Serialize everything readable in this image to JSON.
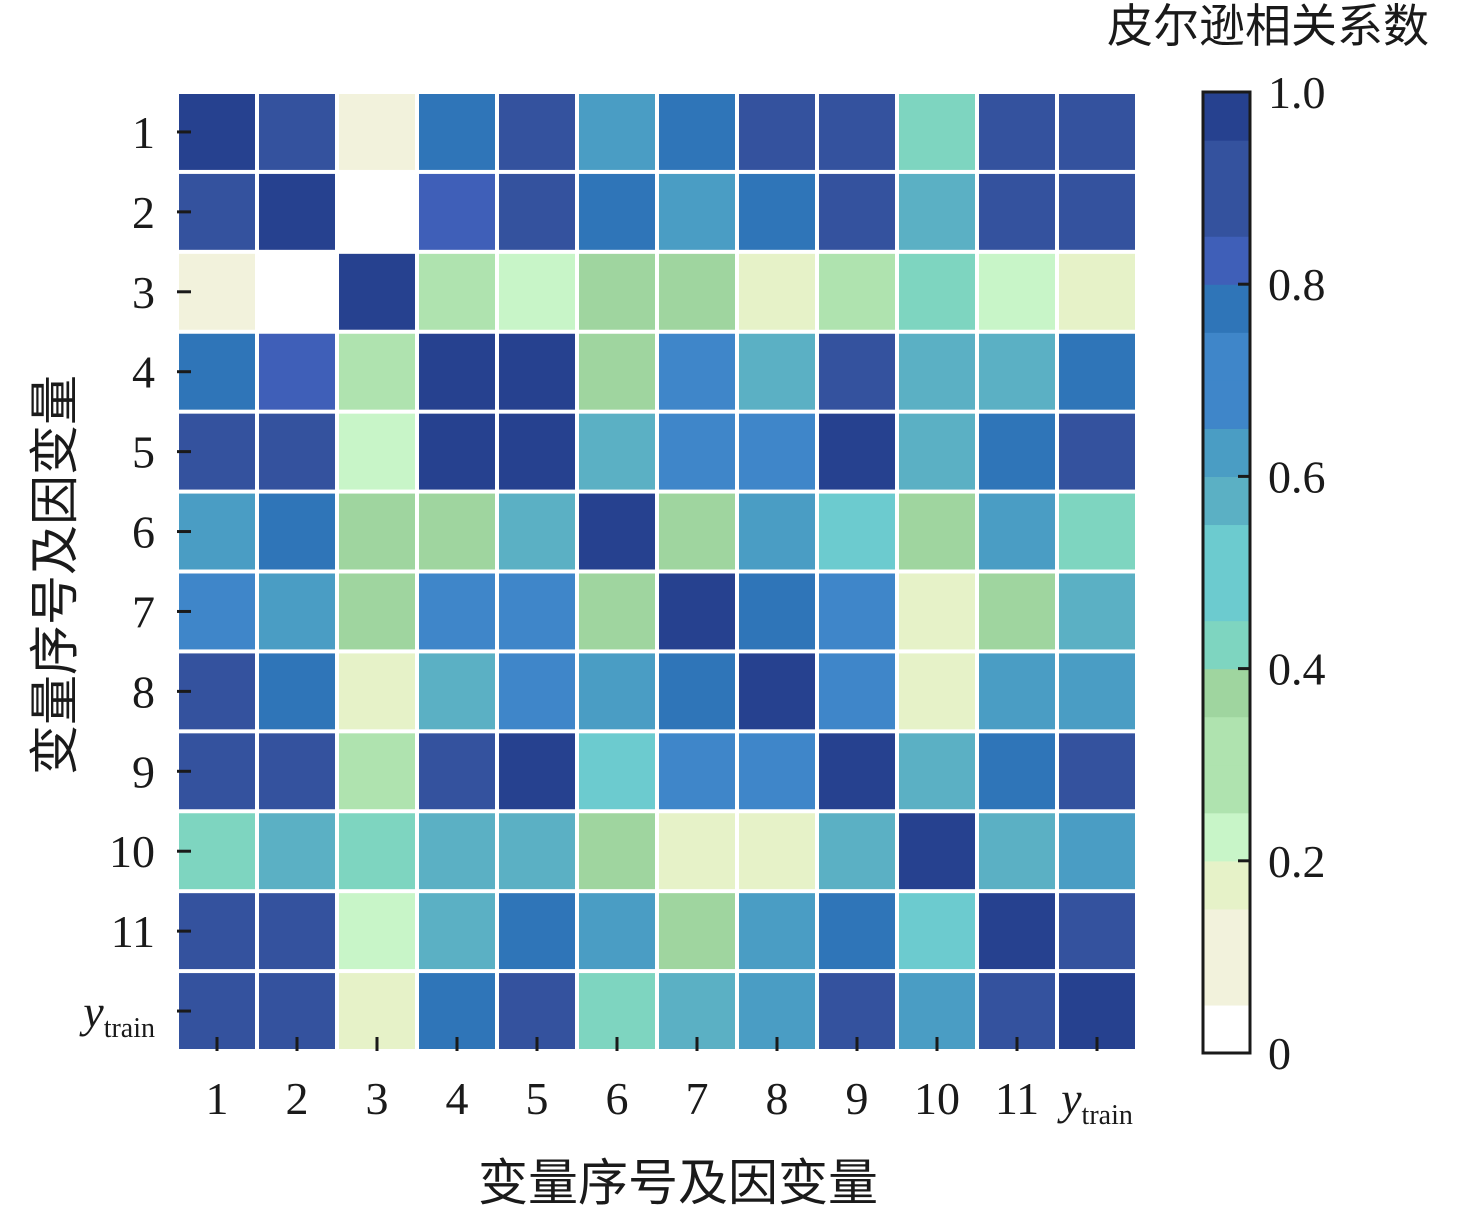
{
  "chart_data": {
    "type": "heatmap",
    "title": "",
    "xlabel": "变量序号及因变量",
    "ylabel": "变量序号及因变量",
    "x_categories": [
      "1",
      "2",
      "3",
      "4",
      "5",
      "6",
      "7",
      "8",
      "9",
      "10",
      "11",
      "y_train"
    ],
    "y_categories": [
      "1",
      "2",
      "3",
      "4",
      "5",
      "6",
      "7",
      "8",
      "9",
      "10",
      "11",
      "y_train"
    ],
    "values": [
      [
        1.0,
        0.88,
        0.12,
        0.76,
        0.88,
        0.62,
        0.74,
        0.88,
        0.88,
        0.45,
        0.88,
        0.88
      ],
      [
        0.88,
        1.0,
        0.02,
        0.84,
        0.88,
        0.76,
        0.62,
        0.76,
        0.88,
        0.56,
        0.88,
        0.88
      ],
      [
        0.12,
        0.02,
        1.0,
        0.3,
        0.22,
        0.34,
        0.34,
        0.14,
        0.3,
        0.45,
        0.22,
        0.14
      ],
      [
        0.76,
        0.84,
        0.3,
        1.0,
        0.96,
        0.34,
        0.72,
        0.56,
        0.88,
        0.56,
        0.56,
        0.78
      ],
      [
        0.88,
        0.88,
        0.22,
        0.96,
        0.96,
        0.56,
        0.72,
        0.7,
        0.98,
        0.56,
        0.76,
        0.88
      ],
      [
        0.62,
        0.76,
        0.34,
        0.34,
        0.56,
        1.0,
        0.34,
        0.62,
        0.48,
        0.34,
        0.65,
        0.45
      ],
      [
        0.72,
        0.62,
        0.34,
        0.72,
        0.72,
        0.34,
        1.0,
        0.78,
        0.72,
        0.14,
        0.34,
        0.56
      ],
      [
        0.88,
        0.76,
        0.14,
        0.56,
        0.72,
        0.62,
        0.78,
        1.0,
        0.72,
        0.14,
        0.62,
        0.6
      ],
      [
        0.88,
        0.88,
        0.3,
        0.88,
        0.96,
        0.48,
        0.72,
        0.72,
        1.0,
        0.56,
        0.76,
        0.88
      ],
      [
        0.45,
        0.56,
        0.45,
        0.56,
        0.56,
        0.34,
        0.14,
        0.14,
        0.56,
        1.0,
        0.56,
        0.6
      ],
      [
        0.88,
        0.88,
        0.22,
        0.56,
        0.76,
        0.65,
        0.34,
        0.65,
        0.76,
        0.5,
        0.97,
        0.88
      ],
      [
        0.88,
        0.88,
        0.14,
        0.78,
        0.88,
        0.45,
        0.56,
        0.6,
        0.88,
        0.6,
        0.88,
        1.0
      ]
    ],
    "vmin": 0,
    "vmax": 1.0,
    "colorbar": {
      "title": "皮尔逊相关系数",
      "ticks": [
        0,
        0.2,
        0.4,
        0.6,
        0.8,
        1.0
      ],
      "tick_labels": [
        "0",
        "0.2",
        "0.4",
        "0.6",
        "0.8",
        "1.0"
      ],
      "bins": 20
    },
    "colormap": [
      "#ffffff",
      "#f2f2dc",
      "#e6f2c8",
      "#c8f5c8",
      "#afe3af",
      "#9fd59f",
      "#7ed5c0",
      "#6ccbcf",
      "#5bb0c4",
      "#4a9dc4",
      "#3f86c9",
      "#2f75b8",
      "#3f5fb8",
      "#34529e",
      "#26418f"
    ],
    "grid": false
  }
}
